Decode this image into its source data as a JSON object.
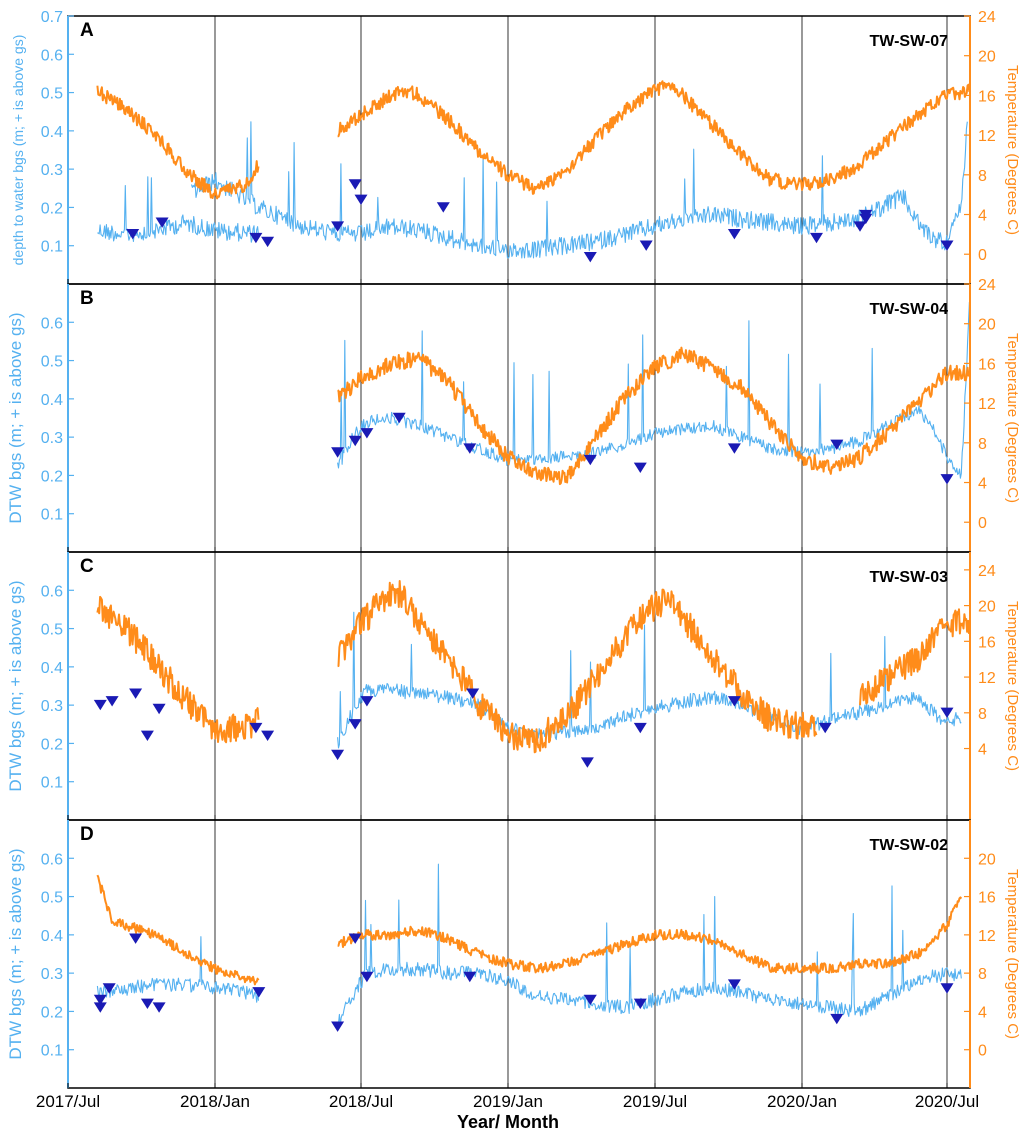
{
  "figure": {
    "xlabel": "Year/ Month",
    "x_ticks": [
      "2017/Jul",
      "2018/Jan",
      "2018/Jul",
      "2019/Jan",
      "2019/Jul",
      "2020/Jan",
      "2020/Jul"
    ],
    "colors": {
      "dtw": "#55b1f0",
      "temp": "#ff8c1a",
      "manual": "#1a1ab4",
      "axis": "#000000",
      "vline": "#000000"
    }
  },
  "chart_data": [
    {
      "type": "line",
      "letter": "A",
      "site": "TW-SW-07",
      "ylabel_left": "depth to water bgs (m; + is above gs)",
      "ylabel_right": "Temperature (Degrees C)",
      "ylim_left": [
        0,
        0.7
      ],
      "left_ticks": [
        "0.1",
        "0.2",
        "0.3",
        "0.4",
        "0.5",
        "0.6",
        "0.7"
      ],
      "ylim_right": [
        -3,
        24
      ],
      "right_ticks": [
        "0",
        "4",
        "8",
        "12",
        "16",
        "20",
        "24"
      ],
      "x_range": [
        2017.5,
        2020.58
      ],
      "dtw_series": [
        {
          "x": [
            2017.6,
            2017.7,
            2017.8,
            2017.9,
            2018.0,
            2018.15
          ],
          "y": [
            0.14,
            0.13,
            0.14,
            0.16,
            0.14,
            0.13
          ]
        },
        {
          "x": [
            2017.92,
            2018.0,
            2018.15,
            2018.3,
            2018.42,
            2018.5,
            2018.6,
            2018.7,
            2018.8,
            2018.9,
            2019.0,
            2019.1,
            2019.2,
            2019.3,
            2019.4,
            2019.5,
            2019.6,
            2019.7,
            2019.8,
            2019.9,
            2020.0,
            2020.1,
            2020.2,
            2020.3,
            2020.35,
            2020.4,
            2020.45,
            2020.5,
            2020.55,
            2020.57
          ],
          "y": [
            0.24,
            0.27,
            0.2,
            0.15,
            0.13,
            0.13,
            0.15,
            0.14,
            0.12,
            0.1,
            0.09,
            0.09,
            0.1,
            0.11,
            0.13,
            0.15,
            0.17,
            0.18,
            0.17,
            0.16,
            0.15,
            0.16,
            0.17,
            0.21,
            0.23,
            0.16,
            0.12,
            0.11,
            0.2,
            0.42
          ]
        }
      ],
      "temp_series": [
        {
          "x": [
            2017.6,
            2017.7,
            2017.8,
            2017.9,
            2018.0,
            2018.1,
            2018.15
          ],
          "y": [
            16.5,
            14.5,
            12.0,
            8.5,
            6.0,
            7.0,
            9.0
          ]
        },
        {
          "x": [
            2018.42,
            2018.5,
            2018.6,
            2018.65,
            2018.7,
            2018.8,
            2018.9,
            2019.0,
            2019.1,
            2019.2,
            2019.3,
            2019.4,
            2019.5,
            2019.55,
            2019.6,
            2019.7,
            2019.8,
            2019.9,
            2020.0,
            2020.1,
            2020.2,
            2020.3,
            2020.4,
            2020.5,
            2020.58
          ],
          "y": [
            12.5,
            14.0,
            16.0,
            16.5,
            16.0,
            13.5,
            10.5,
            8.0,
            6.5,
            8.5,
            11.5,
            14.5,
            16.5,
            17.0,
            16.0,
            13.0,
            10.0,
            7.5,
            7.0,
            7.5,
            9.0,
            11.5,
            14.0,
            16.0,
            16.5
          ]
        }
      ],
      "manual_points": {
        "x": [
          2017.72,
          2017.82,
          2018.14,
          2018.18,
          2018.42,
          2018.48,
          2018.5,
          2018.78,
          2019.28,
          2019.47,
          2019.77,
          2020.05,
          2020.2,
          2020.22,
          2020.22,
          2020.5
        ],
        "y": [
          0.13,
          0.16,
          0.12,
          0.11,
          0.15,
          0.26,
          0.22,
          0.2,
          0.07,
          0.1,
          0.13,
          0.12,
          0.15,
          0.18,
          0.17,
          0.1
        ]
      }
    },
    {
      "type": "line",
      "letter": "B",
      "site": "TW-SW-04",
      "ylabel_left": "DTW bgs (m; + is above gs)",
      "ylabel_right": "Temperature (Degrees C)",
      "ylim_left": [
        0,
        0.7
      ],
      "left_ticks": [
        "0.1",
        "0.2",
        "0.3",
        "0.4",
        "0.5",
        "0.6"
      ],
      "ylim_right": [
        -3,
        24
      ],
      "right_ticks": [
        "0",
        "4",
        "8",
        "12",
        "16",
        "20",
        "24"
      ],
      "x_range": [
        2017.5,
        2020.58
      ],
      "dtw_series": [
        {
          "x": [
            2018.42,
            2018.47,
            2018.52,
            2018.6,
            2018.7,
            2018.8,
            2018.9,
            2019.0,
            2019.1,
            2019.2,
            2019.3,
            2019.4,
            2019.5,
            2019.6,
            2019.7,
            2019.8,
            2019.9,
            2020.0,
            2020.1,
            2020.2,
            2020.3,
            2020.4,
            2020.45,
            2020.5,
            2020.55,
            2020.58
          ],
          "y": [
            0.22,
            0.3,
            0.34,
            0.35,
            0.33,
            0.3,
            0.27,
            0.24,
            0.24,
            0.25,
            0.26,
            0.28,
            0.31,
            0.32,
            0.33,
            0.3,
            0.27,
            0.26,
            0.27,
            0.29,
            0.33,
            0.37,
            0.33,
            0.25,
            0.2,
            0.68
          ]
        }
      ],
      "temp_series": [
        {
          "x": [
            2018.42,
            2018.5,
            2018.6,
            2018.7,
            2018.8,
            2018.9,
            2019.0,
            2019.1,
            2019.2,
            2019.3,
            2019.4,
            2019.5,
            2019.6,
            2019.7,
            2019.8,
            2019.9,
            2020.0,
            2020.1,
            2020.2,
            2020.3,
            2020.4,
            2020.5,
            2020.58
          ],
          "y": [
            12.5,
            14.5,
            16.0,
            16.5,
            14.0,
            10.0,
            6.5,
            5.0,
            4.5,
            8.5,
            12.5,
            15.5,
            17.0,
            15.5,
            13.5,
            10.0,
            6.5,
            5.5,
            6.5,
            9.0,
            12.0,
            15.0,
            15.0
          ]
        }
      ],
      "manual_points": {
        "x": [
          2018.42,
          2018.48,
          2018.52,
          2018.63,
          2018.87,
          2019.28,
          2019.45,
          2019.77,
          2020.12,
          2020.5
        ],
        "y": [
          0.26,
          0.29,
          0.31,
          0.35,
          0.27,
          0.24,
          0.22,
          0.27,
          0.28,
          0.19
        ]
      }
    },
    {
      "type": "line",
      "letter": "C",
      "site": "TW-SW-03",
      "ylabel_left": "DTW bgs (m; + is above gs)",
      "ylabel_right": "Temperature (Degrees C)",
      "ylim_left": [
        0,
        0.7
      ],
      "left_ticks": [
        "0.1",
        "0.2",
        "0.3",
        "0.4",
        "0.5",
        "0.6"
      ],
      "ylim_right": [
        -4,
        26
      ],
      "right_ticks": [
        "4",
        "8",
        "12",
        "16",
        "20",
        "24"
      ],
      "x_range": [
        2017.5,
        2020.58
      ],
      "dtw_series": [
        {
          "x": [
            2018.42,
            2018.47,
            2018.52,
            2018.6,
            2018.7,
            2018.8,
            2018.9,
            2019.0,
            2019.1,
            2019.2,
            2019.3,
            2019.4,
            2019.5,
            2019.6,
            2019.7,
            2019.8,
            2019.9,
            2020.0,
            2020.1,
            2020.2,
            2020.3,
            2020.4,
            2020.5,
            2020.55
          ],
          "y": [
            0.2,
            0.28,
            0.34,
            0.34,
            0.33,
            0.32,
            0.3,
            0.24,
            0.22,
            0.23,
            0.24,
            0.27,
            0.29,
            0.31,
            0.32,
            0.3,
            0.27,
            0.24,
            0.26,
            0.28,
            0.3,
            0.32,
            0.25,
            0.27
          ]
        }
      ],
      "temp_series": [
        {
          "x": [
            2017.6,
            2017.7,
            2017.8,
            2017.9,
            2018.0,
            2018.1,
            2018.15
          ],
          "y": [
            20.0,
            17.5,
            13.5,
            9.5,
            6.0,
            6.5,
            7.0
          ]
        },
        {
          "x": [
            2018.42,
            2018.5,
            2018.6,
            2018.65,
            2018.7,
            2018.8,
            2018.9,
            2019.0,
            2019.1,
            2019.2,
            2019.3,
            2019.4,
            2019.5,
            2019.55,
            2019.6,
            2019.7,
            2019.8,
            2019.9,
            2020.0,
            2020.05
          ],
          "y": [
            14.0,
            18.0,
            21.5,
            21.0,
            18.0,
            14.0,
            9.0,
            5.5,
            5.0,
            7.5,
            12.0,
            16.5,
            20.0,
            20.5,
            18.5,
            14.0,
            10.0,
            7.0,
            6.5,
            7.0
          ]
        },
        {
          "x": [
            2020.2,
            2020.3,
            2020.4,
            2020.5,
            2020.58
          ],
          "y": [
            10.0,
            12.0,
            14.0,
            18.0,
            18.5
          ]
        }
      ],
      "manual_points": {
        "x": [
          2017.61,
          2017.65,
          2017.73,
          2017.77,
          2017.81,
          2018.14,
          2018.18,
          2018.42,
          2018.48,
          2018.52,
          2018.88,
          2019.27,
          2019.45,
          2019.77,
          2020.08,
          2020.5
        ],
        "y": [
          0.3,
          0.31,
          0.33,
          0.22,
          0.29,
          0.24,
          0.22,
          0.17,
          0.25,
          0.31,
          0.33,
          0.15,
          0.24,
          0.31,
          0.24,
          0.28
        ]
      }
    },
    {
      "type": "line",
      "letter": "D",
      "site": "TW-SW-02",
      "ylabel_left": "DTW bgs (m; + is above gs)",
      "ylabel_right": "Temperature (Degrees C)",
      "ylim_left": [
        0,
        0.7
      ],
      "left_ticks": [
        "0.1",
        "0.2",
        "0.3",
        "0.4",
        "0.5",
        "0.6"
      ],
      "ylim_right": [
        -4,
        24
      ],
      "right_ticks": [
        "0",
        "4",
        "8",
        "12",
        "16",
        "20"
      ],
      "x_range": [
        2017.5,
        2020.58
      ],
      "dtw_series": [
        {
          "x": [
            2017.6,
            2017.7,
            2017.8,
            2017.9,
            2018.0,
            2018.1,
            2018.15
          ],
          "y": [
            0.25,
            0.26,
            0.27,
            0.27,
            0.26,
            0.25,
            0.24
          ]
        },
        {
          "x": [
            2018.42,
            2018.47,
            2018.52,
            2018.6,
            2018.7,
            2018.8,
            2018.9,
            2019.0,
            2019.1,
            2019.2,
            2019.3,
            2019.4,
            2019.5,
            2019.6,
            2019.7,
            2019.8,
            2019.9,
            2020.0,
            2020.1,
            2020.2,
            2020.3,
            2020.4,
            2020.5,
            2020.55
          ],
          "y": [
            0.17,
            0.24,
            0.3,
            0.31,
            0.31,
            0.3,
            0.3,
            0.28,
            0.24,
            0.23,
            0.22,
            0.21,
            0.23,
            0.25,
            0.26,
            0.25,
            0.23,
            0.22,
            0.21,
            0.2,
            0.24,
            0.28,
            0.3,
            0.29
          ]
        }
      ],
      "temp_series": [
        {
          "x": [
            2017.6,
            2017.65,
            2017.7,
            2017.8,
            2017.9,
            2018.0,
            2018.1,
            2018.15
          ],
          "y": [
            18.0,
            13.5,
            13.0,
            12.0,
            10.0,
            8.5,
            7.5,
            7.0
          ]
        },
        {
          "x": [
            2018.42,
            2018.5,
            2018.6,
            2018.7,
            2018.8,
            2018.9,
            2019.0,
            2019.1,
            2019.2,
            2019.3,
            2019.4,
            2019.5,
            2019.6,
            2019.7,
            2019.8,
            2019.9,
            2020.0,
            2020.1,
            2020.2,
            2020.3,
            2020.4,
            2020.5,
            2020.55
          ],
          "y": [
            11.0,
            12.0,
            12.0,
            12.5,
            11.5,
            10.0,
            9.0,
            8.5,
            9.0,
            10.0,
            11.0,
            12.0,
            12.0,
            11.5,
            10.0,
            8.5,
            8.5,
            8.5,
            9.0,
            9.0,
            10.0,
            13.0,
            16.0
          ]
        }
      ],
      "manual_points": {
        "x": [
          2017.61,
          2017.61,
          2017.64,
          2017.73,
          2017.77,
          2017.81,
          2018.15,
          2018.42,
          2018.48,
          2018.52,
          2018.87,
          2019.28,
          2019.45,
          2019.77,
          2020.12,
          2020.5
        ],
        "y": [
          0.23,
          0.21,
          0.26,
          0.39,
          0.22,
          0.21,
          0.25,
          0.16,
          0.39,
          0.29,
          0.29,
          0.23,
          0.22,
          0.27,
          0.18,
          0.26
        ]
      }
    }
  ]
}
